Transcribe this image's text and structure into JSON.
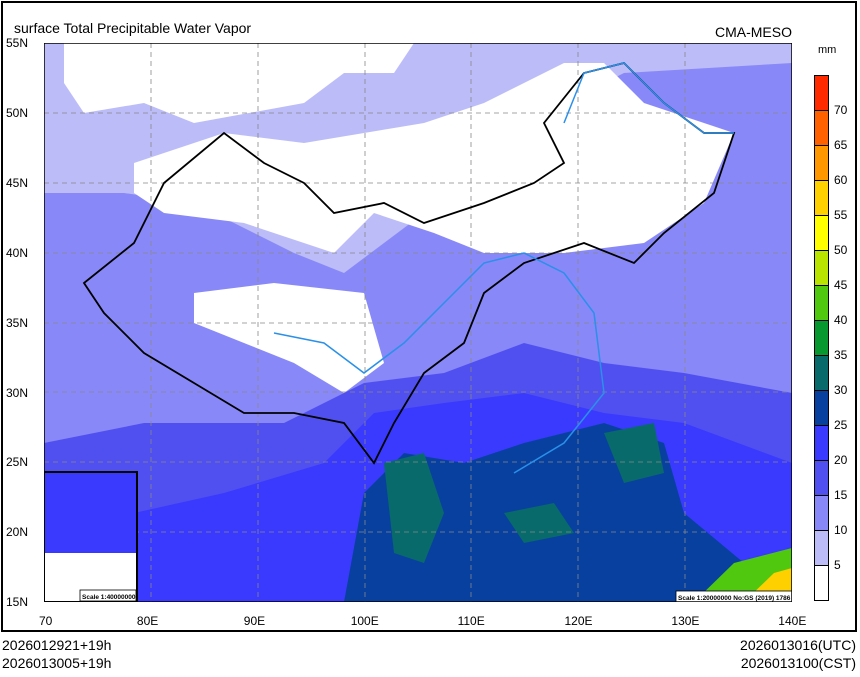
{
  "title": "surface Total Precipitable Water Vapor",
  "brand": "CMA-MESO",
  "unit": "mm",
  "lat_labels": [
    "55N",
    "50N",
    "45N",
    "40N",
    "35N",
    "30N",
    "25N",
    "20N",
    "15N"
  ],
  "lon_labels": [
    "70",
    "80E",
    "90E",
    "100E",
    "110E",
    "120E",
    "130E",
    "140E"
  ],
  "scale_main": "Scale 1:20000000 No:GS (2019) 1786",
  "scale_inset": "Scale 1:40000000",
  "init_utc": "2026012921+19h",
  "init_cst": "2026013005+19h",
  "valid_utc": "2026013016(UTC)",
  "valid_cst": "2026013100(CST)",
  "legend": {
    "labels": [
      "70",
      "65",
      "60",
      "55",
      "50",
      "45",
      "40",
      "35",
      "30",
      "25",
      "20",
      "15",
      "10",
      "5"
    ],
    "colors": [
      "#ff2a00",
      "#ff6000",
      "#ff9800",
      "#ffd000",
      "#ffff00",
      "#b8e400",
      "#50c810",
      "#089830",
      "#086a6a",
      "#0840a0",
      "#3a3aff",
      "#5050f0",
      "#8888f8",
      "#bcbcf8",
      "#ffffff"
    ]
  }
}
